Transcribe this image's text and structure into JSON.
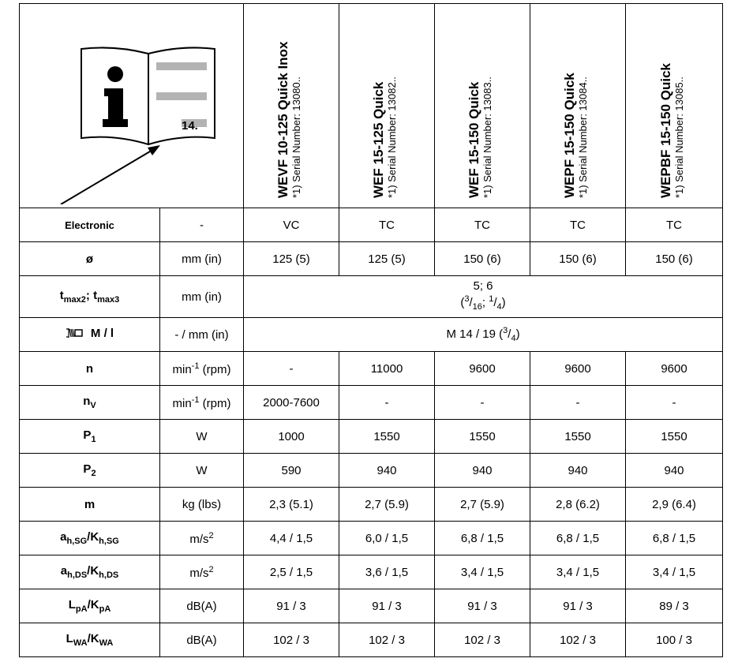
{
  "models": [
    {
      "name": "WEVF 10-125 Quick Inox",
      "serial": "*1) Serial Number: 13080.."
    },
    {
      "name": "WEF 15-125 Quick",
      "serial": "*1) Serial Number: 13082.."
    },
    {
      "name": "WEF 15-150 Quick",
      "serial": "*1) Serial Number: 13083.."
    },
    {
      "name": "WEPF 15-150 Quick",
      "serial": "*1) Serial Number: 13084.."
    },
    {
      "name": "WEPBF 15-150 Quick",
      "serial": "*1) Serial Number: 13085.."
    }
  ],
  "book_icon": {
    "page_label": "14.",
    "icon": "info-book-icon"
  },
  "rows": {
    "electronic": {
      "param": "Electronic",
      "unit": "-",
      "values": [
        "VC",
        "TC",
        "TC",
        "TC",
        "TC"
      ]
    },
    "diameter": {
      "param": "ø",
      "unit": "mm (in)",
      "values": [
        "125 (5)",
        "125 (5)",
        "150 (6)",
        "150 (6)",
        "150 (6)"
      ]
    },
    "tmax": {
      "param_a": "t",
      "param_a_sub": "max2",
      "param_sep": "; ",
      "param_b": "t",
      "param_b_sub": "max3",
      "unit": "mm (in)",
      "value_top": "5; 6",
      "value_open": "(",
      "value_n1": "3",
      "value_d1": "16",
      "value_sep": "; ",
      "value_n2": "1",
      "value_d2": "4",
      "value_close": ")"
    },
    "thread": {
      "icon": "spindle-thread-icon",
      "param": "M / l",
      "unit": "- / mm (in)",
      "value_main": "M 14 / 19 (",
      "value_num": "3",
      "value_den": "4",
      "value_close": ")"
    },
    "speed": {
      "param": "n",
      "unit_base": "min",
      "unit_sup": "-1",
      "unit_rest": " (rpm)",
      "values": [
        "-",
        "11000",
        "9600",
        "9600",
        "9600"
      ]
    },
    "speed_v": {
      "param": "n",
      "param_sub": "V",
      "unit_base": "min",
      "unit_sup": "-1",
      "unit_rest": " (rpm)",
      "values": [
        "2000-7600",
        "-",
        "-",
        "-",
        "-"
      ]
    },
    "p1": {
      "param": "P",
      "param_sub": "1",
      "unit": "W",
      "values": [
        "1000",
        "1550",
        "1550",
        "1550",
        "1550"
      ]
    },
    "p2": {
      "param": "P",
      "param_sub": "2",
      "unit": "W",
      "values": [
        "590",
        "940",
        "940",
        "940",
        "940"
      ]
    },
    "mass": {
      "param": "m",
      "unit": "kg (lbs)",
      "values": [
        "2,3 (5.1)",
        "2,7 (5.9)",
        "2,7 (5.9)",
        "2,8 (6.2)",
        "2,9 (6.4)"
      ]
    },
    "ah_sg": {
      "p1": "a",
      "p1_sub": "h,SG",
      "sep": "/",
      "p2": "K",
      "p2_sub": "h,SG",
      "unit_base": "m/s",
      "unit_sup": "2",
      "values": [
        "4,4 / 1,5",
        "6,0 / 1,5",
        "6,8 / 1,5",
        "6,8 / 1,5",
        "6,8 / 1,5"
      ]
    },
    "ah_ds": {
      "p1": "a",
      "p1_sub": "h,DS",
      "sep": "/",
      "p2": "K",
      "p2_sub": "h,DS",
      "unit_base": "m/s",
      "unit_sup": "2",
      "values": [
        "2,5 / 1,5",
        "3,6 / 1,5",
        "3,4 / 1,5",
        "3,4 / 1,5",
        "3,4 / 1,5"
      ]
    },
    "lpa": {
      "p1": "L",
      "p1_sub": "pA",
      "sep": "/",
      "p2": "K",
      "p2_sub": "pA",
      "unit": "dB(A)",
      "values": [
        "91 / 3",
        "91 / 3",
        "91 / 3",
        "91 / 3",
        "89 / 3"
      ]
    },
    "lwa": {
      "p1": "L",
      "p1_sub": "WA",
      "sep": "/",
      "p2": "K",
      "p2_sub": "WA",
      "unit": "dB(A)",
      "values": [
        "102 / 3",
        "102 / 3",
        "102 / 3",
        "102 / 3",
        "100 / 3"
      ]
    }
  }
}
